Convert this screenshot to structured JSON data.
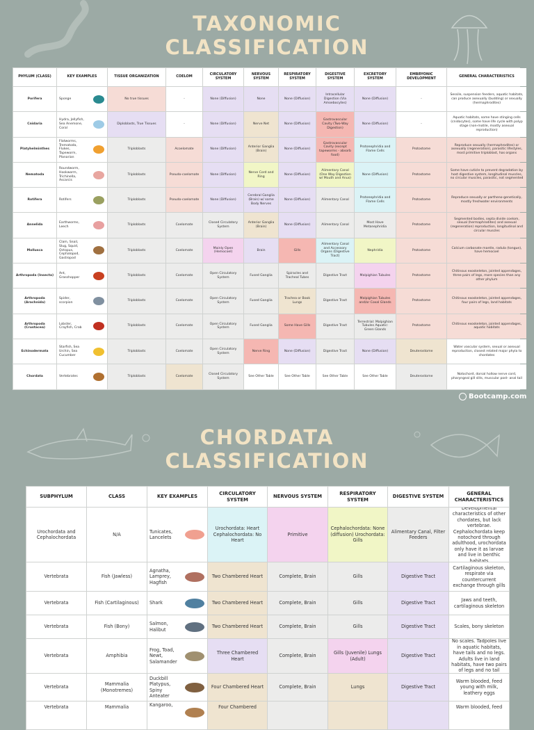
{
  "title": "TAXONOMIC CLASSIFICATION",
  "taxonomy_table": {
    "header": [
      "PHYLUM (CLASS)",
      "KEY EXAMPLES",
      "TISSUE ORGANIZATION",
      "COELOM",
      "CIRCULATORY SYSTEM",
      "NERVOUS SYSTEM",
      "RESPIRATORY SYSTEM",
      "DIGESTIVE SYSTEM",
      "EXCRETORY SYSTEM",
      "EMBRYONIC DEVELOPMENT",
      "GENERAL CHARACTERISTICS"
    ],
    "rows": [
      [
        "Porifera",
        "Sponge",
        "No true tissues",
        "-",
        "None (Diffusion)",
        "None",
        "None (Diffusion)",
        "Intracellular Digestion (Via Amoebocytes)",
        "None (Diffusion)",
        "-",
        "Sessile, suspension feeders, aquatic habitats, can produce asexually (budding) or sexually (hermaphrodites)"
      ],
      [
        "Cnidaria",
        "Hydra, Jellyfish, Sea Anemone, Coral",
        "Diploblasts, True Tissues",
        "-",
        "None (Diffusion)",
        "Nerve Net",
        "None (Diffusion)",
        "Gastrovascular Cavity (Two-Way Digestion)",
        "None (Diffusion)",
        "-",
        "Aquatic habitats, some have stinging cells (cnidocytes), some have life cycle with polyp stage (non-motile, mostly asexual reproduction)"
      ],
      [
        "Platyhelminthes",
        "Flatworms, Trematoda, Flukes, Tapeworm, Planarian",
        "Triploblasts",
        "Acoelomate",
        "None (Diffusion)",
        "Anterior Ganglia (Brain)",
        "None (Diffusion)",
        "Gastrovascular Cavity (except tapeworms - absorb food)",
        "Protonephridia and Flame Cells",
        "Protostome",
        "Reproduce sexually (hermaphrodites) or asexually (regeneration), parasitic lifestyles, most primitive triploblast, has organs"
      ],
      [
        "Nematoda",
        "Roundworm, Hookworm, Trichinella, Ascarcis",
        "Triploblasts",
        "Pseudo-coelomate",
        "None (Diffusion)",
        "Nerve Cord and Ring",
        "None (Diffusion)",
        "Alimentary Canal (One Way Digestion w/ Mouth and Anus)",
        "None (Diffusion)",
        "Protostome",
        "Some have cuticle to prevent degradation by host digestive system, longitudinal muscles, no circular muscles, parasitic, not segmented"
      ],
      [
        "Rotifera",
        "Rotifers",
        "Triploblasts",
        "Pseudo-coelomate",
        "None (Diffusion)",
        "Cerebral Ganglia (Brain) w/ some Body Nerves",
        "None (Diffusion)",
        "Alimentary Canal",
        "Protonephridia and Flame Cells",
        "Protostome",
        "Reproduce sexually or partheno-genetically, mostly freshwater environments"
      ],
      [
        "Annelida",
        "Earthworms, Leech",
        "Triploblasts",
        "Coelomate",
        "Closed Circulatory System",
        "Anterior Ganglia (Brain)",
        "None (Diffusion)",
        "Alimentary Canal",
        "Most Have Metanephridia",
        "Protostome",
        "Segmented bodies, septa divide coelom, sexual (hermaphrodites) and asexual (regeneration) reproduction, longitudinal and circular muscles"
      ],
      [
        "Mollusca",
        "Clam, Snail, Slug, Squid, Octopus, Cephalopod, Gastropod",
        "Triploblasts",
        "Coelomate",
        "Mainly Open (Hemocoel)",
        "Brain",
        "Gills",
        "Alimentary Canal and Accessory Organs (Digestive Tract)",
        "Nephridia",
        "Protostome",
        "Calcium carbonate mantle, radula (tongue), have hemocoel"
      ],
      [
        "Arthropoda (Insecta)",
        "Ant, Grasshopper",
        "Triploblasts",
        "Coelomate",
        "Open Circulatory System",
        "Fused Ganglia",
        "Spiracles and Tracheal Tubes",
        "Digestive Tract",
        "Malpighian Tubules",
        "Protostome",
        "Chitinous exoskeleton, jointed appendages, three pairs of legs, more species than any other phylum"
      ],
      [
        "Arthropoda (Arachnida)",
        "Spider, scorpion",
        "Triploblasts",
        "Coelomate",
        "Open Circulatory System",
        "Fused Ganglia",
        "Trachea or Book Lungs",
        "Digestive Tract",
        "Malpighian Tubules and/or Coxal Glands",
        "Protostome",
        "Chitinous exoskeleton, jointed appendages, four pairs of legs, land habitats"
      ],
      [
        "Arthropoda (Crustacea)",
        "Lobster, Crayfish, Crab",
        "Triploblasts",
        "Coelomate",
        "Open Circulatory System",
        "Fused Ganglia",
        "Some Have Gills",
        "Digestive Tract",
        "Terrestrial: Malpighian Tubules Aquatic: Green Glands",
        "Protostome",
        "Chitinous exoskeleton, jointed appendages, aquatic habitats"
      ],
      [
        "Echinodermata",
        "Starfish, Sea Urchin, Sea Cucumber",
        "Triploblasts",
        "Coelomate",
        "Open Circulatory System",
        "Nerve Ring",
        "None (Diffusion)",
        "Digestive Tract",
        "None (Diffusion)",
        "Deuterostome",
        "Water vascular system, sexual or asexual reproduction, closest related major phyla to chordates"
      ],
      [
        "Chordata",
        "Vertebrates",
        "Triploblasts",
        "Coelomate",
        "Closed Circulatory System",
        "See Other Table",
        "See Other Table",
        "See Other Table",
        "See Other Table",
        "Deuterostome",
        "Notochord, dorsal hollow nerve cord, pharyngeal gill slits, muscular post- anal tail"
      ]
    ]
  },
  "logo": "Bootcamp.com",
  "chordata_title": "CHORDATA CLASSIFICATION",
  "chordata_table": {
    "header": [
      "SUBPHYLUM",
      "CLASS",
      "KEY EXAMPLES",
      "CIRCULATORY SYSTEM",
      "NERVOUS SYSTEM",
      "RESPIRATORY SYSTEM",
      "DIGESTIVE SYSTEM",
      "GENERAL CHARACTERISTICS"
    ],
    "rows": [
      [
        "Urochordata and Cephalochordata",
        "N/A",
        "Tunicates, Lancelets",
        "Urochordata: Heart Cephalochordata: No Heart",
        "Primitive",
        "Cephalochordata: None (diffusion) Urochordata: Gills",
        "Alimentary Canal, Filter Feeders",
        "Developmental characteristics of other chordates, but lack vertebrae. Cephalochordata keep notochord through adulthood, urochordata only have it as larvae and live in benthic habitats"
      ],
      [
        "Vertebrata",
        "Fish (Jawless)",
        "Agnatha, Lamprey, Hagfish",
        "Two Chambered Heart",
        "Complete, Brain",
        "Gills",
        "Digestive Tract",
        "Cartilaginous skeleton, respirate via countercurrent exchange through gills"
      ],
      [
        "Vertebrata",
        "Fish (Cartilaginous)",
        "Shark",
        "Two Chambered Heart",
        "Complete, Brain",
        "Gills",
        "Digestive Tract",
        "Jaws and teeth, cartilaginous skeleton"
      ],
      [
        "Vertebrata",
        "Fish (Bony)",
        "Salmon, Halibut",
        "Two Chambered Heart",
        "Complete, Brain",
        "Gills",
        "Digestive Tract",
        "Scales, bony skeleton"
      ],
      [
        "Vertebrata",
        "Amphibia",
        "Frog, Toad, Newt, Salamander",
        "Three Chambered Heart",
        "Complete, Brain",
        "Gills (Juvenile) Lungs (Adult)",
        "Digestive Tract",
        "No scales. Tadpoles live in aquatic habitats, have tails and no legs. Adults live in land habitats, have two pairs of legs and no tail"
      ],
      [
        "Vertebrata",
        "Mammalia (Monotremes)",
        "Duckbill Platypus, Spiny Anteater",
        "Four Chambered Heart",
        "Complete, Brain",
        "Lungs",
        "Digestive Tract",
        "Warm blooded, feed young with milk, leathery eggs"
      ],
      [
        "Vertebrata",
        "Mammalia",
        "Kangaroo,",
        "Four Chambered",
        null,
        null,
        null,
        "Warm blooded, feed"
      ]
    ]
  }
}
